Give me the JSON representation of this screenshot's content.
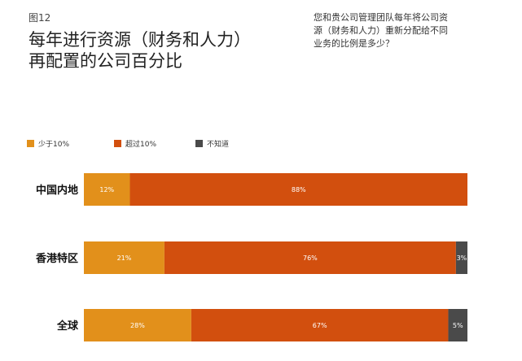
{
  "figure_label": "图12",
  "title_lines": [
    "每年进行资源（财务和人力）",
    "再配置的公司百分比"
  ],
  "question_lines": [
    "您和贵公司管理团队每年将公司资",
    "源（财务和人力）重新分配给不同",
    "业务的比例是多少？"
  ],
  "chart_data": {
    "type": "bar",
    "orientation": "horizontal",
    "stacked": true,
    "categories": [
      "中国内地",
      "香港特区",
      "全球"
    ],
    "series": [
      {
        "name": "少于10%",
        "values": [
          12,
          21,
          28
        ],
        "labels": [
          "12%",
          "21%",
          "28%"
        ],
        "color": "#e2901b"
      },
      {
        "name": "超过10%",
        "values": [
          88,
          76,
          67
        ],
        "labels": [
          "88%",
          "76%",
          "67%"
        ],
        "color": "#d24f0e"
      },
      {
        "name": "不知道",
        "values": [
          0,
          3,
          5
        ],
        "labels": [
          "",
          "3%",
          "5%"
        ],
        "color": "#4a4a4a"
      }
    ],
    "xlim": [
      0,
      100
    ],
    "legend_position": "top-left",
    "grid": false
  }
}
